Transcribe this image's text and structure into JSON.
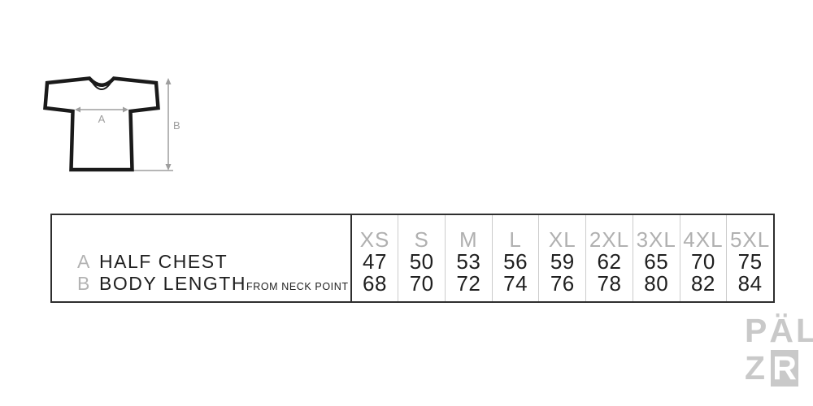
{
  "diagram": {
    "label_a": "A",
    "label_b": "B"
  },
  "table": {
    "sizes": [
      "XS",
      "S",
      "M",
      "L",
      "XL",
      "2XL",
      "3XL",
      "4XL",
      "5XL"
    ],
    "rows": [
      {
        "key": "A",
        "label": "HALF CHEST",
        "note": "",
        "values": [
          "47",
          "50",
          "53",
          "56",
          "59",
          "62",
          "65",
          "70",
          "75"
        ]
      },
      {
        "key": "B",
        "label": "BODY LENGTH",
        "note": "FROM NECK POINT",
        "values": [
          "68",
          "70",
          "72",
          "74",
          "76",
          "78",
          "80",
          "82",
          "84"
        ]
      }
    ]
  },
  "logo": {
    "line1": "PÄL",
    "z": "Z",
    "r": "R"
  },
  "colors": {
    "ink": "#1f1f1f",
    "muted_label": "#b0b0b0",
    "column_line": "#cccccc",
    "arrow_gray": "#9e9e9e",
    "logo_gray": "#c7c7c7",
    "background": "#ffffff"
  }
}
